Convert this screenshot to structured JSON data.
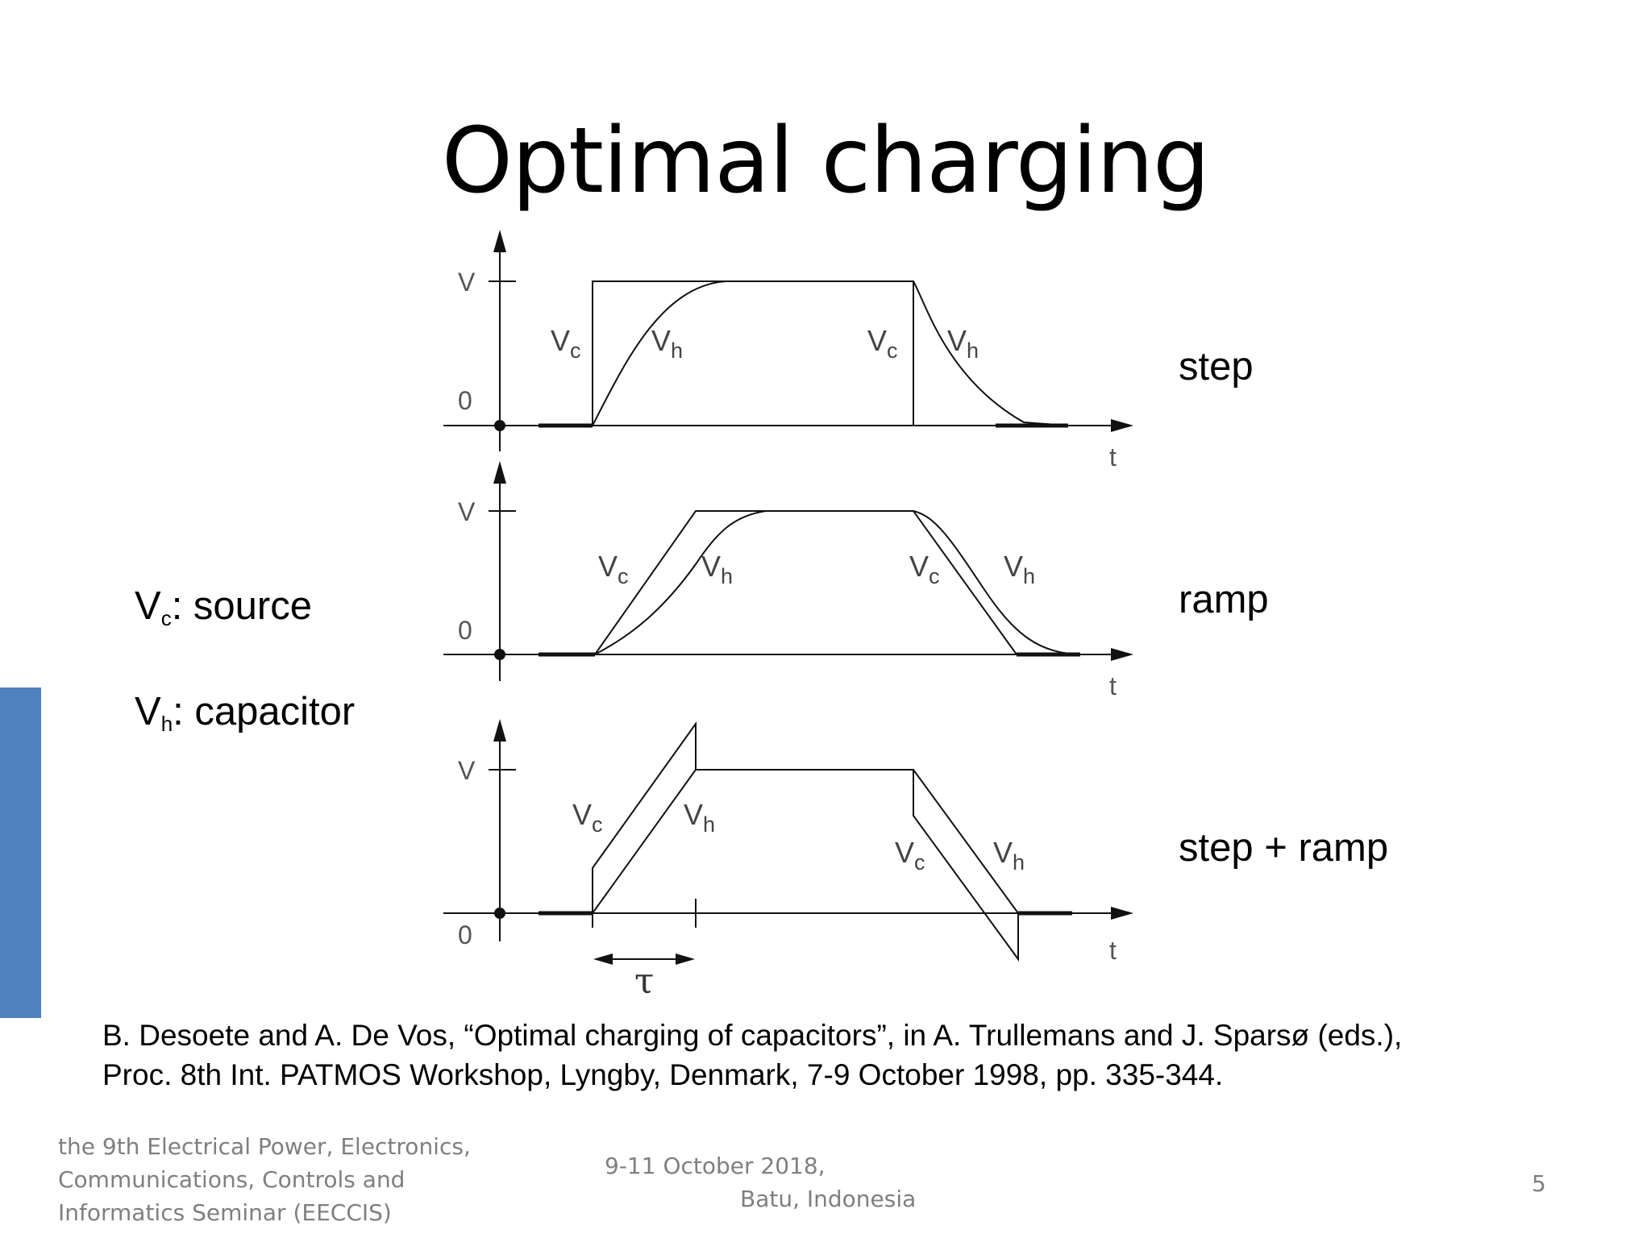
{
  "title": "Optimal charging",
  "legend": {
    "source": {
      "symbol": "V",
      "sub": "c",
      "text": ": source"
    },
    "capacitor": {
      "symbol": "V",
      "sub": "h",
      "text": ": capacitor"
    }
  },
  "diagram": {
    "axis_v": "V",
    "axis_zero": "0",
    "axis_t": "t",
    "vc": {
      "symbol": "V",
      "sub": "c"
    },
    "vh": {
      "symbol": "V",
      "sub": "h"
    },
    "tau": "τ",
    "panels": [
      {
        "label": "step"
      },
      {
        "label": "ramp"
      },
      {
        "label": "step + ramp"
      }
    ]
  },
  "citation": {
    "line1": "B. Desoete and A. De Vos, “Optimal charging of capacitors”, in A. Trullemans and J. Sparsø (eds.),",
    "line2": "Proc. 8th Int. PATMOS Workshop, Lyngby, Denmark, 7-9 October 1998, pp. 335-344."
  },
  "footer": {
    "left": [
      "the 9th Electrical Power, Electronics,",
      "Communications, Controls and",
      "Informatics Seminar (EECCIS)"
    ],
    "date": "9-11 October 2018,",
    "place": "Batu, Indonesia",
    "page": "5"
  },
  "colors": {
    "accent": "#4f81bd",
    "footer_text": "#7f7f7f"
  }
}
